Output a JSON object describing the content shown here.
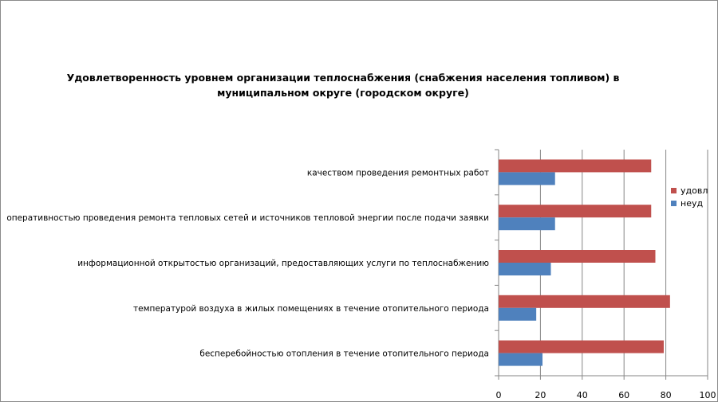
{
  "chart_data": {
    "type": "bar",
    "orientation": "horizontal",
    "title": "Удовлетворенность уровнем организации теплоснабжения (снабжения населения топливом) в муниципальном округе (городском округе)",
    "categories": [
      "качеством проведения ремонтных работ",
      "оперативностью проведения ремонта тепловых сетей и источников тепловой энергии после подачи заявки",
      "информационной открытостью организаций, предоставляющих услуги по теплоснабжению",
      "температурой воздуха в жилых помещениях в течение отопительного периода",
      "бесперебойностью отопления в течение отопительного периода"
    ],
    "series": [
      {
        "name": "удовл",
        "color": "#c0504d",
        "values": [
          73,
          73,
          75,
          82,
          79
        ]
      },
      {
        "name": "неуд",
        "color": "#4f81bd",
        "values": [
          27,
          27,
          25,
          18,
          21
        ]
      }
    ],
    "xlim": [
      0,
      100
    ],
    "xticks": [
      "0",
      "20",
      "40",
      "60",
      "80",
      "100"
    ],
    "grid": true,
    "legend": "right"
  }
}
